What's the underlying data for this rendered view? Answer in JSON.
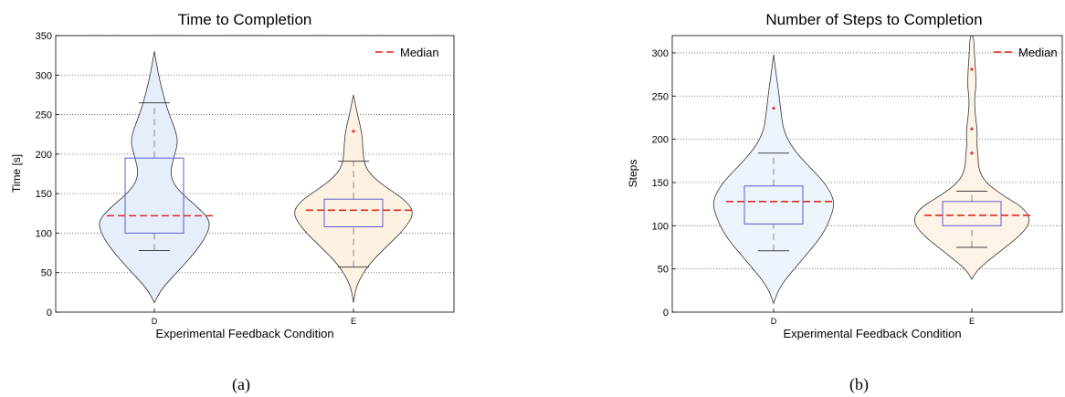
{
  "chart_data": [
    {
      "type": "violin",
      "title": "Time to Completion",
      "xlabel": "Experimental Feedback Condition",
      "ylabel": "Time [s]",
      "ylim": [
        0,
        350
      ],
      "yticks": [
        0,
        50,
        100,
        150,
        200,
        250,
        300,
        350
      ],
      "grid": "horizontal dotted",
      "legend": {
        "placement": "top-right",
        "entries": [
          "Median"
        ]
      },
      "panel_label": "(a)",
      "categories": [
        "D",
        "E"
      ],
      "series": [
        {
          "category": "D",
          "fill": "#e6eefb",
          "median": 122,
          "q1": 100,
          "q3": 195,
          "whisker_low": 78,
          "whisker_high": 265,
          "outliers": [],
          "density": [
            [
              12,
              0.0
            ],
            [
              30,
              0.12
            ],
            [
              55,
              0.42
            ],
            [
              80,
              0.7
            ],
            [
              100,
              0.86
            ],
            [
              115,
              0.9
            ],
            [
              130,
              0.74
            ],
            [
              150,
              0.44
            ],
            [
              165,
              0.29
            ],
            [
              180,
              0.26
            ],
            [
              200,
              0.33
            ],
            [
              215,
              0.38
            ],
            [
              230,
              0.34
            ],
            [
              250,
              0.24
            ],
            [
              270,
              0.16
            ],
            [
              295,
              0.08
            ],
            [
              330,
              0.0
            ]
          ]
        },
        {
          "category": "E",
          "fill": "#fdf1e1",
          "median": 129,
          "q1": 108,
          "q3": 143,
          "whisker_low": 57,
          "whisker_high": 191,
          "outliers": [
            229
          ],
          "density": [
            [
              12,
              0.0
            ],
            [
              35,
              0.05
            ],
            [
              60,
              0.24
            ],
            [
              85,
              0.56
            ],
            [
              105,
              0.82
            ],
            [
              125,
              0.98
            ],
            [
              140,
              0.86
            ],
            [
              155,
              0.58
            ],
            [
              170,
              0.32
            ],
            [
              185,
              0.18
            ],
            [
              205,
              0.15
            ],
            [
              225,
              0.14
            ],
            [
              245,
              0.08
            ],
            [
              275,
              0.0
            ]
          ]
        }
      ]
    },
    {
      "type": "violin",
      "title": "Number of Steps to Completion",
      "xlabel": "Experimental Feedback Condition",
      "ylabel": "Steps",
      "ylim": [
        0,
        320
      ],
      "yticks": [
        0,
        50,
        100,
        150,
        200,
        250,
        300
      ],
      "grid": "horizontal dotted",
      "legend": {
        "placement": "top-right",
        "entries": [
          "Median"
        ]
      },
      "panel_label": "(b)",
      "categories": [
        "D",
        "E"
      ],
      "series": [
        {
          "category": "D",
          "fill": "#eef4fc",
          "median": 128,
          "q1": 102,
          "q3": 146,
          "whisker_low": 71,
          "whisker_high": 184,
          "outliers": [
            236
          ],
          "density": [
            [
              10,
              0.0
            ],
            [
              30,
              0.1
            ],
            [
              60,
              0.45
            ],
            [
              90,
              0.8
            ],
            [
              115,
              0.95
            ],
            [
              130,
              0.98
            ],
            [
              150,
              0.82
            ],
            [
              170,
              0.55
            ],
            [
              190,
              0.3
            ],
            [
              210,
              0.16
            ],
            [
              230,
              0.12
            ],
            [
              250,
              0.09
            ],
            [
              270,
              0.05
            ],
            [
              298,
              0.0
            ]
          ]
        },
        {
          "category": "E",
          "fill": "#fdf3e6",
          "median": 112,
          "q1": 100,
          "q3": 128,
          "whisker_low": 75,
          "whisker_high": 140,
          "outliers": [
            281,
            212,
            184
          ],
          "density": [
            [
              38,
              0.0
            ],
            [
              50,
              0.1
            ],
            [
              70,
              0.45
            ],
            [
              90,
              0.8
            ],
            [
              105,
              0.95
            ],
            [
              120,
              0.85
            ],
            [
              135,
              0.5
            ],
            [
              150,
              0.22
            ],
            [
              165,
              0.11
            ],
            [
              180,
              0.1
            ],
            [
              195,
              0.08
            ],
            [
              210,
              0.09
            ],
            [
              225,
              0.06
            ],
            [
              245,
              0.04
            ],
            [
              262,
              0.07
            ],
            [
              280,
              0.06
            ],
            [
              300,
              0.04
            ],
            [
              320,
              0.03
            ]
          ]
        }
      ]
    }
  ]
}
